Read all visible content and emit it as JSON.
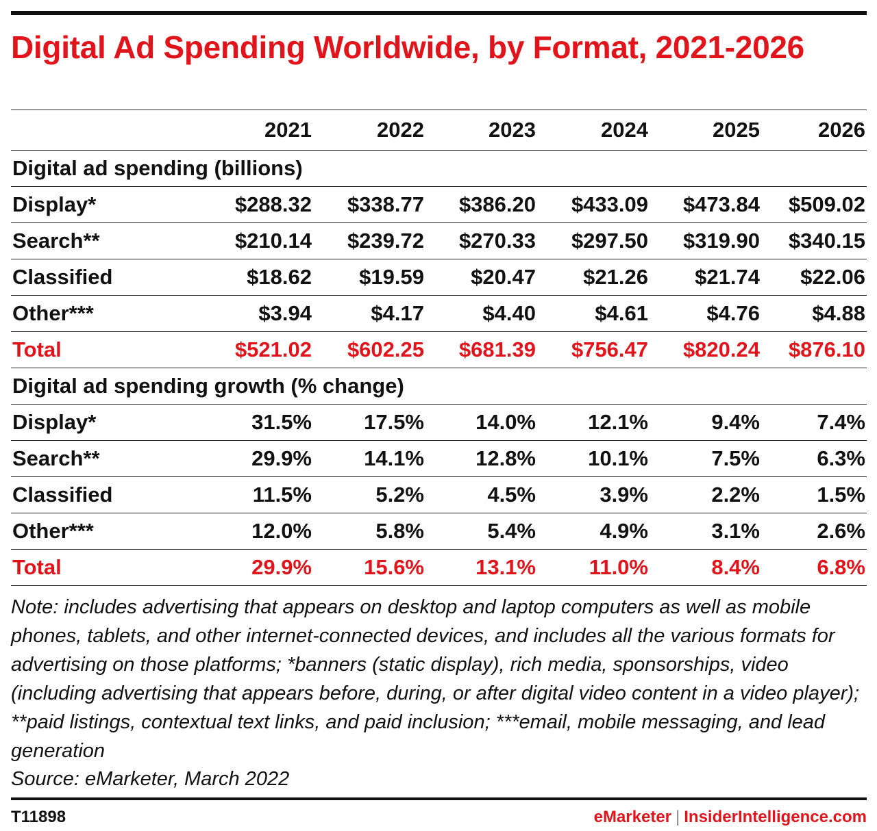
{
  "header": {
    "title": "Digital Ad Spending Worldwide, by Format, 2021-2026"
  },
  "chart_data": {
    "type": "table",
    "title": "Digital Ad Spending Worldwide, by Format, 2021-2026",
    "columns": [
      "2021",
      "2022",
      "2023",
      "2024",
      "2025",
      "2026"
    ],
    "sections": [
      {
        "name": "Digital ad spending (billions)",
        "rows": [
          {
            "label": "Display*",
            "values": [
              "$288.32",
              "$338.77",
              "$386.20",
              "$433.09",
              "$473.84",
              "$509.02"
            ]
          },
          {
            "label": "Search**",
            "values": [
              "$210.14",
              "$239.72",
              "$270.33",
              "$297.50",
              "$319.90",
              "$340.15"
            ]
          },
          {
            "label": "Classified",
            "values": [
              "$18.62",
              "$19.59",
              "$20.47",
              "$21.26",
              "$21.74",
              "$22.06"
            ]
          },
          {
            "label": "Other***",
            "values": [
              "$3.94",
              "$4.17",
              "$4.40",
              "$4.61",
              "$4.76",
              "$4.88"
            ]
          },
          {
            "label": "Total",
            "values": [
              "$521.02",
              "$602.25",
              "$681.39",
              "$756.47",
              "$820.24",
              "$876.10"
            ],
            "total": true
          }
        ]
      },
      {
        "name": "Digital ad spending growth (% change)",
        "rows": [
          {
            "label": "Display*",
            "values": [
              "31.5%",
              "17.5%",
              "14.0%",
              "12.1%",
              "9.4%",
              "7.4%"
            ]
          },
          {
            "label": "Search**",
            "values": [
              "29.9%",
              "14.1%",
              "12.8%",
              "10.1%",
              "7.5%",
              "6.3%"
            ]
          },
          {
            "label": "Classified",
            "values": [
              "11.5%",
              "5.2%",
              "4.5%",
              "3.9%",
              "2.2%",
              "1.5%"
            ]
          },
          {
            "label": "Other***",
            "values": [
              "12.0%",
              "5.8%",
              "5.4%",
              "4.9%",
              "3.1%",
              "2.6%"
            ]
          },
          {
            "label": "Total",
            "values": [
              "29.9%",
              "15.6%",
              "13.1%",
              "11.0%",
              "8.4%",
              "6.8%"
            ],
            "total": true
          }
        ]
      }
    ]
  },
  "footnotes": {
    "note": "Note: includes advertising that appears on desktop and laptop computers as well as mobile phones, tablets, and other internet-connected devices, and includes all the various formats for advertising on those platforms; *banners (static display), rich media, sponsorships, video (including advertising that appears before, during, or after digital video content in a video player); **paid listings, contextual text links, and paid inclusion; ***email, mobile messaging, and lead generation",
    "source": "Source: eMarketer, March 2022"
  },
  "footer": {
    "chart_id": "T11898",
    "brand_primary": "eMarketer",
    "brand_separator": "|",
    "brand_secondary": "InsiderIntelligence.com"
  },
  "colors": {
    "accent": "#e2141b",
    "text": "#111111"
  }
}
